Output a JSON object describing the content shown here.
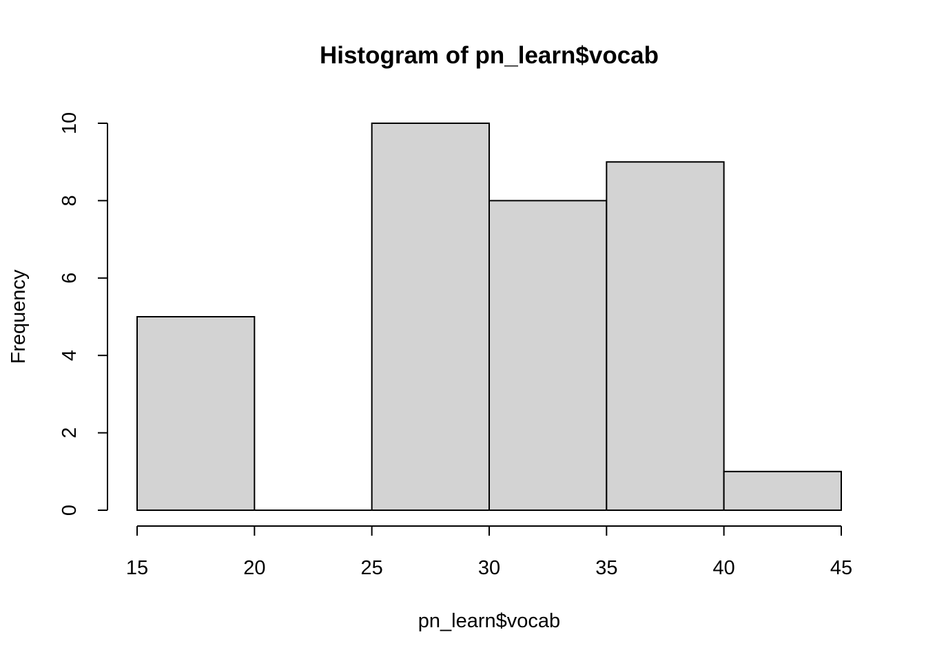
{
  "chart_data": {
    "type": "bar",
    "title": "Histogram of pn_learn$vocab",
    "xlabel": "pn_learn$vocab",
    "ylabel": "Frequency",
    "bins": [
      {
        "start": 15,
        "end": 20,
        "count": 5
      },
      {
        "start": 20,
        "end": 25,
        "count": 0
      },
      {
        "start": 25,
        "end": 30,
        "count": 10
      },
      {
        "start": 30,
        "end": 35,
        "count": 8
      },
      {
        "start": 35,
        "end": 40,
        "count": 9
      },
      {
        "start": 40,
        "end": 45,
        "count": 1
      }
    ],
    "xlim": [
      15,
      45
    ],
    "ylim": [
      0,
      10
    ],
    "x_ticks": [
      15,
      20,
      25,
      30,
      35,
      40,
      45
    ],
    "y_ticks": [
      0,
      2,
      4,
      6,
      8,
      10
    ],
    "grid": false,
    "bar_color": "#d3d3d3",
    "edge_color": "#000000"
  }
}
